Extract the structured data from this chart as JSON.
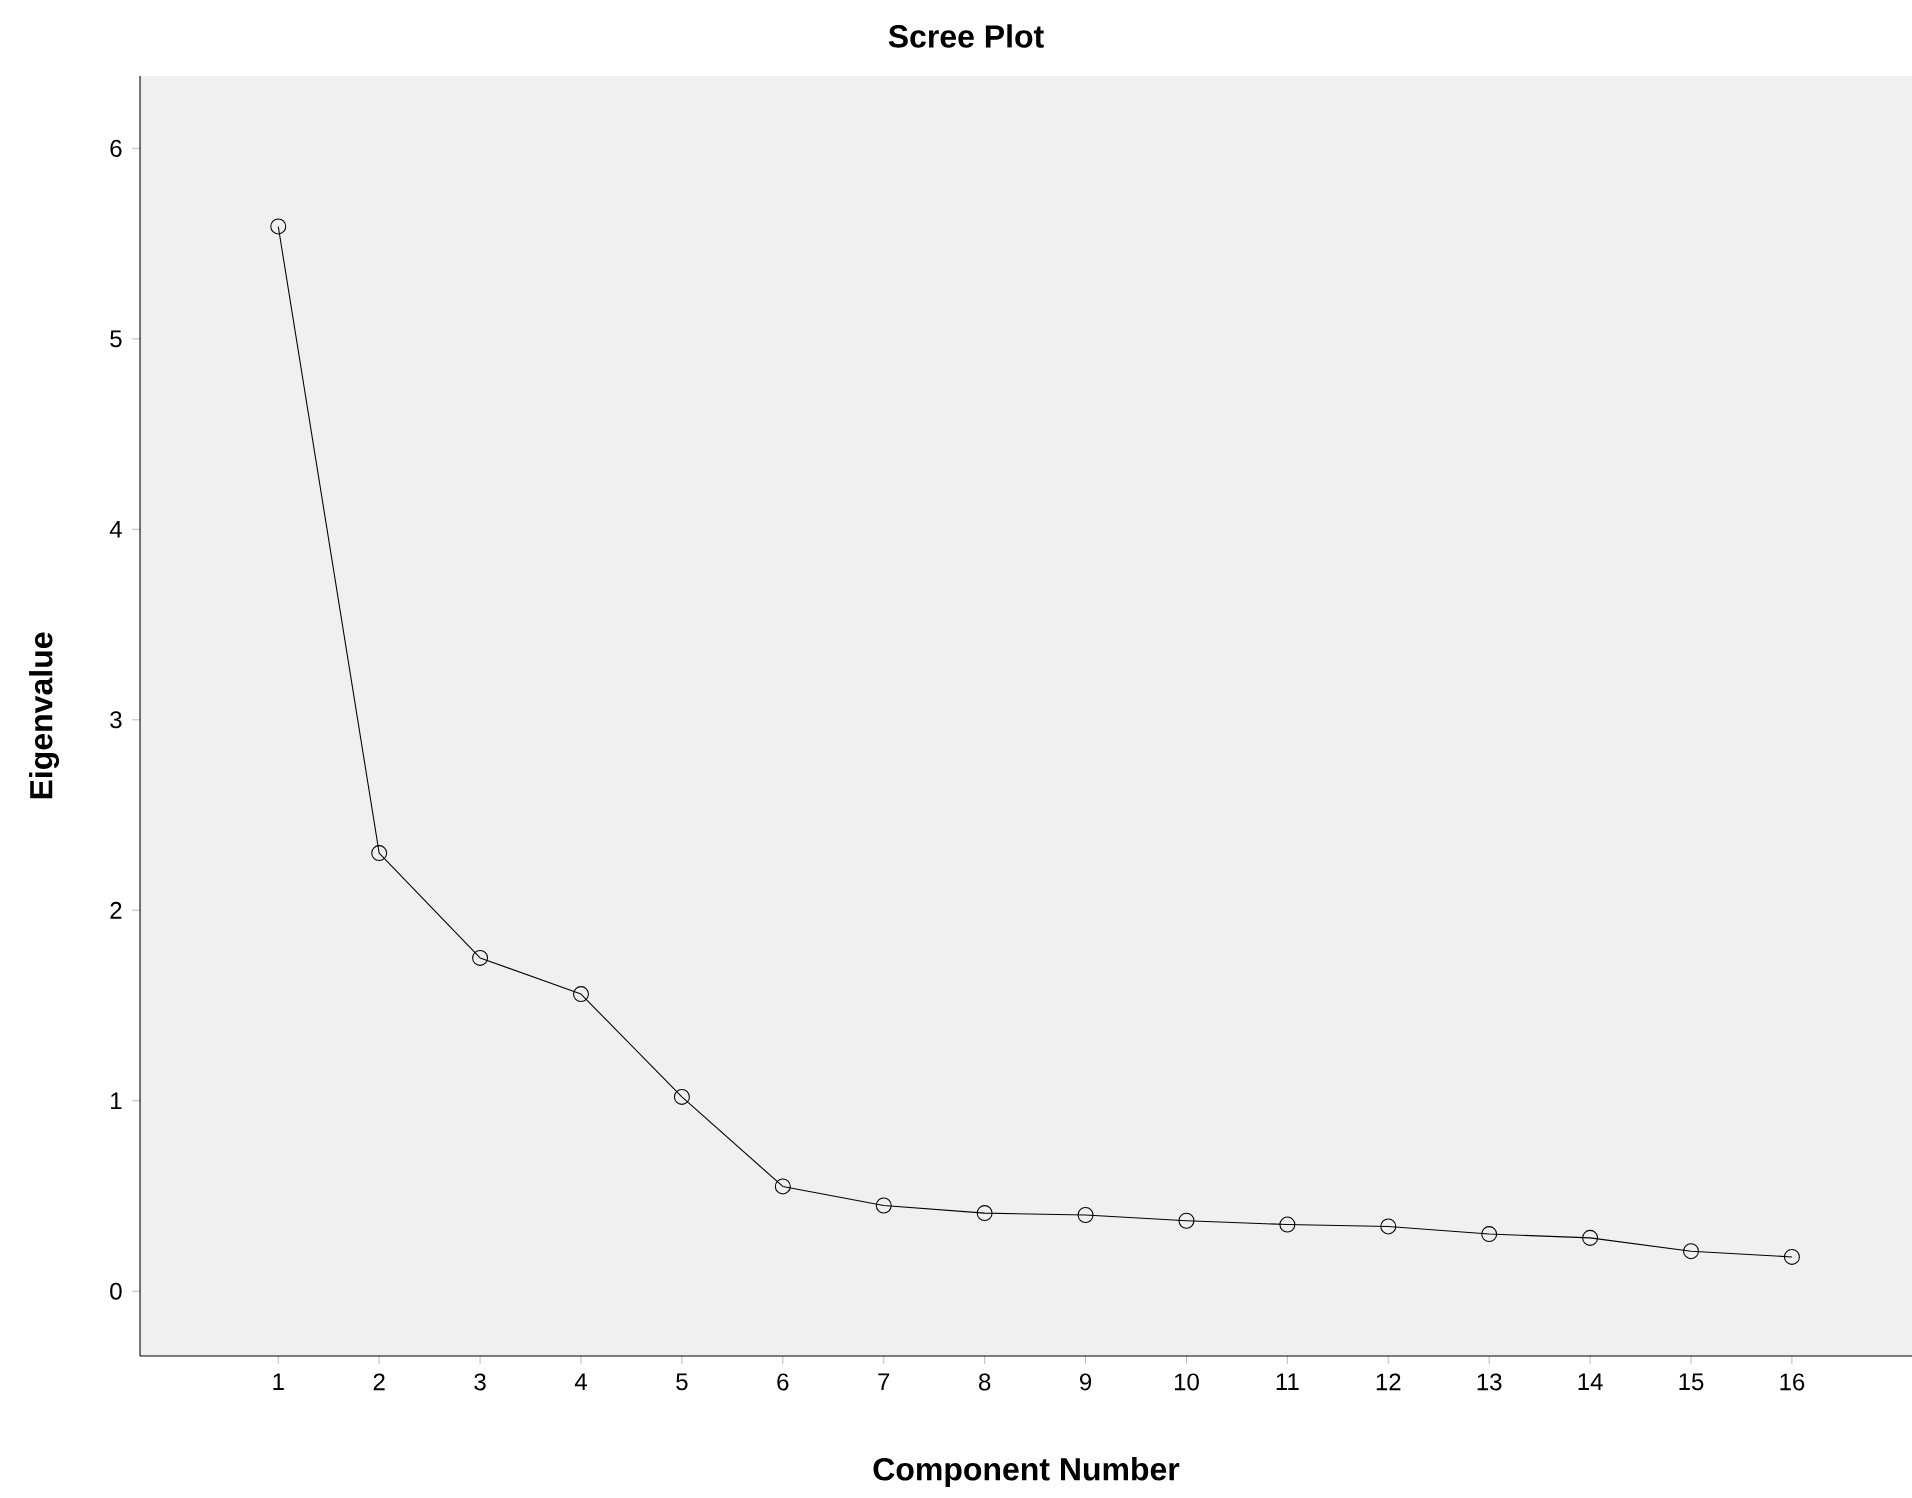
{
  "chart_data": {
    "type": "line",
    "title": "Scree Plot",
    "xlabel": "Component Number",
    "ylabel": "Eigenvalue",
    "categories": [
      "1",
      "2",
      "3",
      "4",
      "5",
      "6",
      "7",
      "8",
      "9",
      "10",
      "11",
      "12",
      "13",
      "14",
      "15",
      "16"
    ],
    "values": [
      5.59,
      2.3,
      1.75,
      1.56,
      1.02,
      0.55,
      0.45,
      0.41,
      0.4,
      0.37,
      0.35,
      0.34,
      0.3,
      0.28,
      0.21,
      0.18
    ],
    "color": "#000000",
    "marker": "circle",
    "line_style": "solid",
    "ylim": [
      -0.34,
      6.38
    ],
    "yticks": [
      0,
      1,
      2,
      3,
      4,
      5,
      6
    ],
    "grid": false
  }
}
